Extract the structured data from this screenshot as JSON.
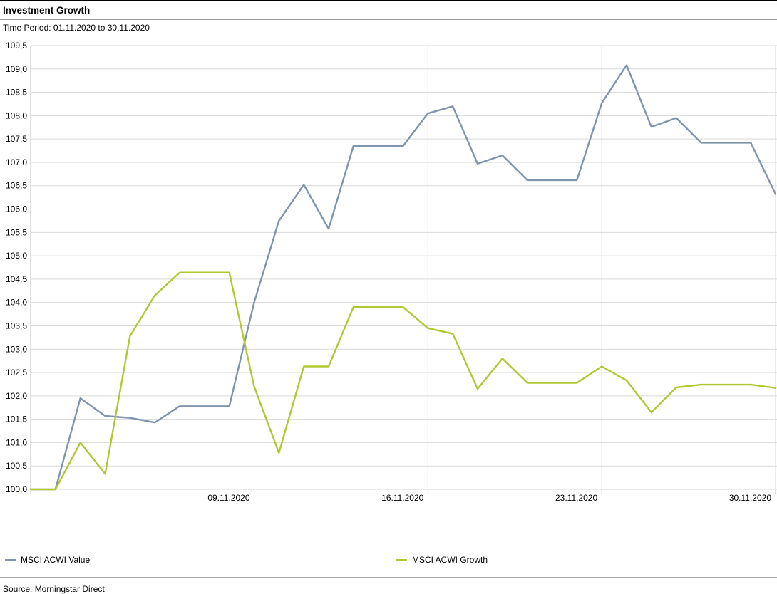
{
  "page": {
    "title": "Investment Growth",
    "subtitle": "Time Period: 01.11.2020 to 30.11.2020",
    "source": "Source: Morningstar Direct"
  },
  "legend": {
    "items": [
      {
        "label": "MSCI ACWI Value",
        "color": "#8094b0"
      },
      {
        "label": "MSCI ACWI Growth",
        "color": "#b2c832"
      }
    ]
  },
  "colors": {
    "value_line": "#8094b0",
    "growth_line": "#b2c832",
    "gridline": "#d9d9d9",
    "axis": "#c2c2c2",
    "text": "#000000"
  },
  "chart_data": {
    "type": "line",
    "title": "Investment Growth",
    "subtitle": "Time Period: 01.11.2020 to 30.11.2020",
    "x": [
      "31.10.2020",
      "01.11.2020",
      "02.11.2020",
      "03.11.2020",
      "04.11.2020",
      "05.11.2020",
      "06.11.2020",
      "07.11.2020",
      "08.11.2020",
      "09.11.2020",
      "10.11.2020",
      "11.11.2020",
      "12.11.2020",
      "13.11.2020",
      "14.11.2020",
      "15.11.2020",
      "16.11.2020",
      "17.11.2020",
      "18.11.2020",
      "19.11.2020",
      "20.11.2020",
      "21.11.2020",
      "22.11.2020",
      "23.11.2020",
      "24.11.2020",
      "25.11.2020",
      "26.11.2020",
      "27.11.2020",
      "28.11.2020",
      "29.11.2020",
      "30.11.2020"
    ],
    "series": [
      {
        "name": "MSCI ACWI Value",
        "color": "#8094b0",
        "values": [
          100.0,
          100.0,
          101.95,
          101.57,
          101.53,
          101.43,
          101.78,
          101.78,
          101.78,
          104.0,
          105.75,
          106.52,
          105.58,
          107.35,
          107.35,
          107.35,
          108.05,
          108.2,
          106.97,
          107.15,
          106.62,
          106.62,
          106.62,
          108.27,
          109.08,
          107.76,
          107.95,
          107.42,
          107.42,
          107.42,
          106.32
        ]
      },
      {
        "name": "MSCI ACWI Growth",
        "color": "#b2c832",
        "values": [
          100.0,
          100.0,
          101.0,
          100.33,
          103.28,
          104.15,
          104.64,
          104.64,
          104.64,
          102.2,
          100.78,
          102.63,
          102.63,
          103.9,
          103.9,
          103.9,
          103.45,
          103.33,
          102.15,
          102.8,
          102.28,
          102.28,
          102.28,
          102.63,
          102.33,
          101.65,
          102.18,
          102.24,
          102.24,
          102.24,
          102.17
        ]
      }
    ],
    "ylim": [
      100.0,
      109.5
    ],
    "y_step": 0.5,
    "y_tick_labels": [
      "100,0",
      "100,5",
      "101,0",
      "101,5",
      "102,0",
      "102,5",
      "103,0",
      "103,5",
      "104,0",
      "104,5",
      "105,0",
      "105,5",
      "106,0",
      "106,5",
      "107,0",
      "107,5",
      "108,0",
      "108,5",
      "109,0",
      "109,5"
    ],
    "x_tick_indices": [
      9,
      16,
      23,
      30
    ],
    "x_tick_labels": [
      "09.11.2020",
      "16.11.2020",
      "23.11.2020",
      "30.11.2020"
    ],
    "grid": true,
    "legend_position": "bottom",
    "decimal_separator": ","
  }
}
